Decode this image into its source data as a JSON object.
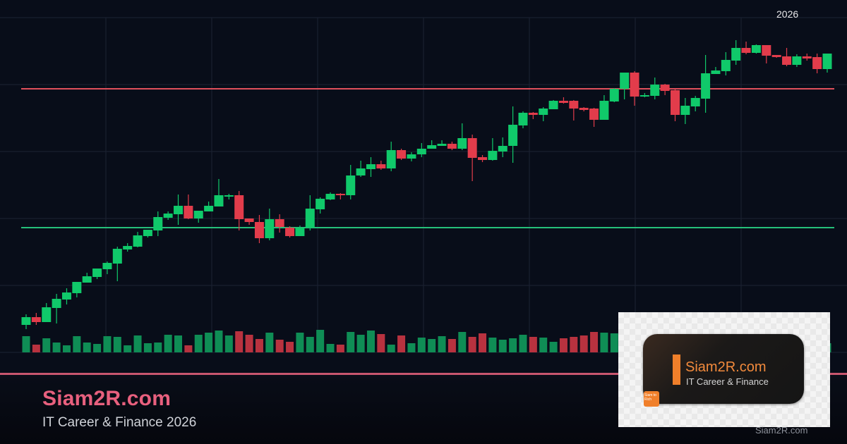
{
  "header": {
    "year_label": "2026"
  },
  "brand": {
    "title": "Siam2R.com",
    "subtitle": "IT Career & Finance 2026",
    "watermark": "Siam2R.com"
  },
  "logo": {
    "name": "Siam2R.com",
    "tagline": "IT Career & Finance",
    "badge": "Siam to Rich"
  },
  "colors": {
    "background": "#080d19",
    "grid": "#1c2232",
    "up": "#10c96a",
    "down": "#e23c4b",
    "volume_up": "#0f8d55",
    "volume_down": "#b8323f",
    "resistance": "#e0505c",
    "support": "#25c07a",
    "accent": "#e8607e",
    "accent_line": "#c8566e",
    "logo_orange": "#f08a3a"
  },
  "chart_data": {
    "type": "candlestick",
    "title": "",
    "xlabel": "",
    "ylabel": "",
    "ylim": [
      0,
      100
    ],
    "grid": true,
    "horizontal_lines": [
      {
        "role": "resistance",
        "value": 74.8,
        "color": "#e0505c"
      },
      {
        "role": "support",
        "value": 35.4,
        "color": "#25c07a"
      }
    ],
    "candles": [
      [
        7.8,
        10.8,
        6.6,
        10
      ],
      [
        10,
        11.2,
        7.8,
        8.6
      ],
      [
        8.6,
        14,
        8.6,
        12.8
      ],
      [
        12.6,
        16.6,
        8.2,
        15.2
      ],
      [
        15,
        18.2,
        13.6,
        17
      ],
      [
        16.8,
        20,
        15.6,
        20
      ],
      [
        19.8,
        22.6,
        19.8,
        21.6
      ],
      [
        21.4,
        23.8,
        20.8,
        23.8
      ],
      [
        23.6,
        25.8,
        22.2,
        25.4
      ],
      [
        25.2,
        30,
        20.2,
        29.4
      ],
      [
        29.2,
        31,
        28.6,
        30.2
      ],
      [
        30,
        34.2,
        29.8,
        33.2
      ],
      [
        33,
        34.8,
        32.6,
        34.8
      ],
      [
        34.6,
        40,
        33,
        38.4
      ],
      [
        38.2,
        40,
        37.6,
        39.4
      ],
      [
        39.2,
        44.8,
        36.2,
        41.6
      ],
      [
        41.6,
        44.8,
        37.8,
        38
      ],
      [
        38,
        40.2,
        36.8,
        40.2
      ],
      [
        40,
        42.8,
        40,
        41.6
      ],
      [
        41.4,
        49.2,
        41.4,
        44.6
      ],
      [
        44.2,
        45,
        43.4,
        44.6
      ],
      [
        44.6,
        45.8,
        34.6,
        37.8
      ],
      [
        38,
        38,
        36.2,
        37
      ],
      [
        37,
        39,
        31,
        32.4
      ],
      [
        32.4,
        40.8,
        31.8,
        37.8
      ],
      [
        37.8,
        39.2,
        34,
        35.6
      ],
      [
        35.4,
        35.8,
        32.6,
        33
      ],
      [
        33,
        36,
        33,
        35.4
      ],
      [
        35.4,
        44.6,
        34.6,
        40.8
      ],
      [
        40.6,
        44,
        39.4,
        43.6
      ],
      [
        43.4,
        45.4,
        43.2,
        45
      ],
      [
        45,
        45.2,
        43.4,
        44.6
      ],
      [
        44.6,
        53.2,
        43.4,
        50.2
      ],
      [
        50.2,
        54.4,
        49.8,
        52.2
      ],
      [
        52,
        55.4,
        49.8,
        53.4
      ],
      [
        53.4,
        54.4,
        51.8,
        52.2
      ],
      [
        52.2,
        59.8,
        51.4,
        57.4
      ],
      [
        57.4,
        57.8,
        54.6,
        55
      ],
      [
        55,
        56.8,
        54.2,
        56.2
      ],
      [
        56.2,
        59.4,
        55.4,
        57.8
      ],
      [
        57.8,
        60.2,
        57.8,
        58.8
      ],
      [
        58.6,
        60.2,
        58.6,
        59.2
      ],
      [
        59.2,
        59.8,
        57.4,
        57.8
      ],
      [
        57.8,
        65,
        57.4,
        60.8
      ],
      [
        60.8,
        61.8,
        48.6,
        55.2
      ],
      [
        55.4,
        56,
        54,
        54.6
      ],
      [
        54.6,
        60.8,
        54.4,
        57.2
      ],
      [
        57,
        61,
        55.4,
        58.6
      ],
      [
        58.6,
        69.8,
        53.8,
        64.6
      ],
      [
        64.4,
        68.4,
        63.6,
        68
      ],
      [
        68,
        68.2,
        66.2,
        67.4
      ],
      [
        67.4,
        69.6,
        65.6,
        69.2
      ],
      [
        69,
        71.6,
        69,
        71.4
      ],
      [
        71.4,
        72.4,
        70.6,
        70.8
      ],
      [
        71.4,
        71.6,
        65.8,
        69.2
      ],
      [
        69.4,
        69.6,
        68.4,
        68.8
      ],
      [
        69.2,
        69.4,
        64,
        66
      ],
      [
        66,
        73,
        66,
        71.4
      ],
      [
        71.2,
        75,
        71,
        74.8
      ],
      [
        74.8,
        79.4,
        71.8,
        79.4
      ],
      [
        79.4,
        79.8,
        70,
        72.6
      ],
      [
        72.6,
        73.6,
        72.4,
        73
      ],
      [
        72.8,
        78,
        71.8,
        76
      ],
      [
        76,
        76.2,
        73,
        74.2
      ],
      [
        74.4,
        74.6,
        65.6,
        67.4
      ],
      [
        67.4,
        72.2,
        64.8,
        70
      ],
      [
        69.8,
        72.8,
        68.4,
        72.2
      ],
      [
        72,
        84.4,
        68,
        79.2
      ],
      [
        79,
        81,
        79,
        80
      ],
      [
        79.8,
        85.2,
        78.6,
        83
      ],
      [
        82.8,
        88.6,
        81.6,
        86.4
      ],
      [
        86.4,
        88.2,
        84.6,
        85
      ],
      [
        85,
        87.4,
        84.8,
        87.2
      ],
      [
        87.2,
        87.2,
        82,
        84.2
      ],
      [
        84.4,
        84.4,
        83.6,
        83.8
      ],
      [
        84,
        86.4,
        81.2,
        81.6
      ],
      [
        81.6,
        84.6,
        81,
        84
      ],
      [
        84,
        84.8,
        82.8,
        83.4
      ],
      [
        83.8,
        84.8,
        79.2,
        80.4
      ],
      [
        80.4,
        84.8,
        79.4,
        84.8
      ]
    ],
    "candle_format": [
      "open",
      "high",
      "low",
      "close"
    ],
    "volume": [
      23,
      11,
      20,
      14,
      10,
      23,
      14,
      12,
      23,
      22,
      10,
      24,
      13,
      14,
      25,
      24,
      10,
      25,
      28,
      31,
      24,
      30,
      25,
      19,
      28,
      18,
      15,
      28,
      22,
      32,
      12,
      11,
      29,
      25,
      31,
      26,
      11,
      24,
      13,
      21,
      19,
      23,
      19,
      29,
      22,
      27,
      21,
      18,
      20,
      25,
      22,
      21,
      15,
      20,
      22,
      24,
      29,
      28,
      27,
      null,
      null,
      null,
      null,
      null,
      null,
      null,
      null,
      null,
      null,
      null,
      null,
      null,
      null,
      null,
      null,
      null,
      null,
      null,
      null,
      13
    ]
  }
}
